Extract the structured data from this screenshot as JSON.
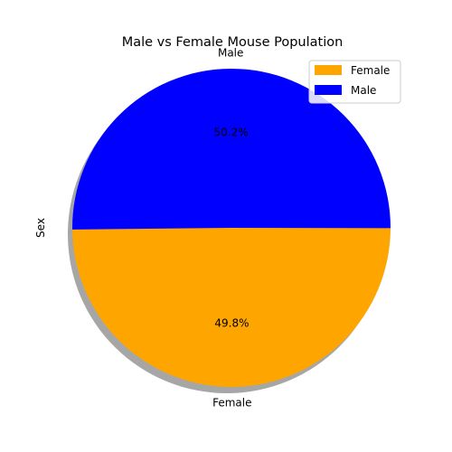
{
  "chart_data": {
    "type": "pie",
    "title": "Male vs Female Mouse Population",
    "ylabel": "Sex",
    "categories": [
      "Female",
      "Male"
    ],
    "values": [
      49.8,
      50.2
    ],
    "pct_labels": [
      "49.8%",
      "50.2%"
    ],
    "colors": [
      "#FFA500",
      "#0000FF"
    ],
    "shadow": true,
    "legend": {
      "placement": "top-right",
      "entries": [
        "Female",
        "Male"
      ]
    }
  }
}
